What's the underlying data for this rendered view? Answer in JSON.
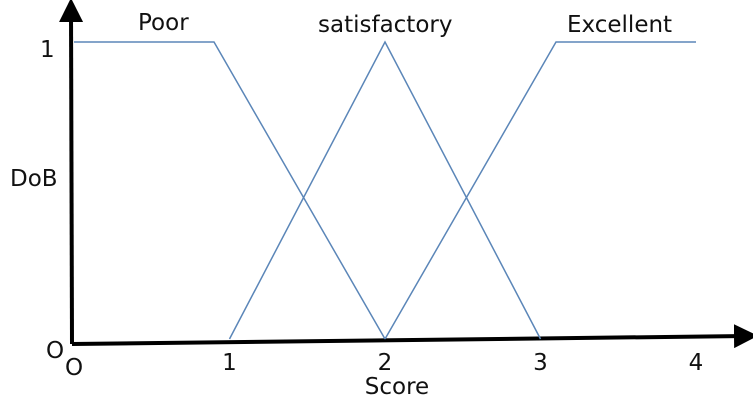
{
  "chart_data": {
    "type": "line",
    "title": "",
    "xlabel": "Score",
    "ylabel": "DoB",
    "xlim": [
      0,
      4
    ],
    "ylim": [
      0,
      1
    ],
    "x_ticks": [
      "1",
      "2",
      "3",
      "4"
    ],
    "x_origin_label": "O",
    "y_ticks": [
      "1"
    ],
    "y_origin_label": "O",
    "grid": false,
    "line_color": "#5b86b8",
    "axis_color": "#000000",
    "series": [
      {
        "name": "Poor",
        "points": [
          [
            0,
            1
          ],
          [
            0.9,
            1
          ],
          [
            2,
            0
          ]
        ]
      },
      {
        "name": "satisfactory",
        "points": [
          [
            1,
            0
          ],
          [
            2,
            1
          ],
          [
            3,
            0
          ]
        ]
      },
      {
        "name": "Excellent",
        "points": [
          [
            2,
            0
          ],
          [
            3.1,
            1
          ],
          [
            4,
            1
          ]
        ]
      }
    ]
  }
}
